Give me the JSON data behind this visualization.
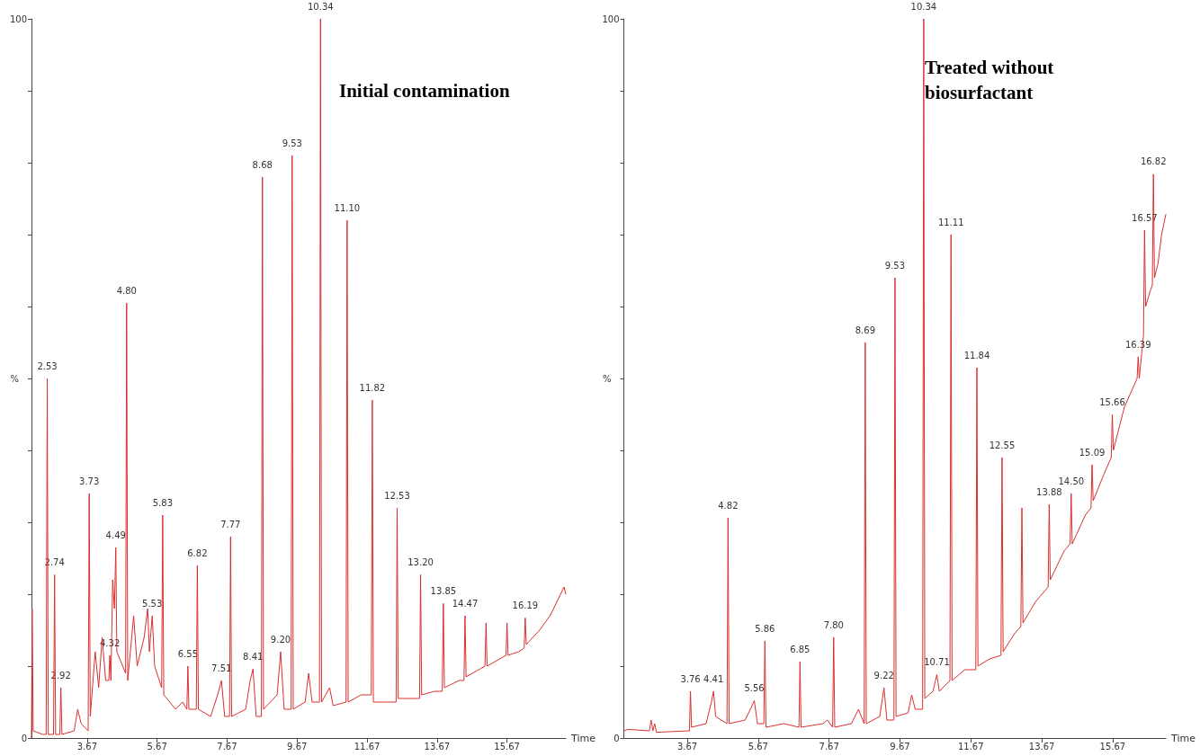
{
  "chart_data": [
    {
      "type": "line",
      "title": "Initial contamination",
      "xlabel": "Time",
      "ylabel": "%",
      "xlim": [
        2.08,
        17.35
      ],
      "xticks": [
        3.67,
        5.67,
        7.67,
        9.67,
        11.67,
        13.67,
        15.67
      ],
      "ylim": [
        0,
        100
      ],
      "yticks": [
        {
          "value": 0,
          "label": "0"
        },
        {
          "value": 10,
          "label": null
        },
        {
          "value": 20,
          "label": null
        },
        {
          "value": 30,
          "label": null
        },
        {
          "value": 40,
          "label": null
        },
        {
          "value": 50,
          "label": null
        },
        {
          "value": 60,
          "label": null
        },
        {
          "value": 70,
          "label": null
        },
        {
          "value": 80,
          "label": null
        },
        {
          "value": 90,
          "label": null
        },
        100
      ],
      "grid": false,
      "marker": "none",
      "line_style": "solid",
      "series": [
        {
          "color": "#d9302f",
          "x": [
            2.08,
            2.1,
            2.13,
            2.4,
            2.5,
            2.53,
            2.56,
            2.71,
            2.74,
            2.77,
            2.89,
            2.92,
            2.95,
            3.3,
            3.4,
            3.5,
            3.7,
            3.73,
            3.76,
            3.9,
            4.0,
            4.1,
            4.2,
            4.29,
            4.32,
            4.35,
            4.4,
            4.45,
            4.49,
            4.52,
            4.77,
            4.8,
            4.83,
            5.0,
            5.1,
            5.3,
            5.4,
            5.45,
            5.53,
            5.6,
            5.8,
            5.83,
            5.86,
            6.2,
            6.4,
            6.52,
            6.55,
            6.58,
            6.79,
            6.82,
            6.85,
            7.2,
            7.4,
            7.51,
            7.6,
            7.74,
            7.77,
            7.8,
            8.2,
            8.33,
            8.41,
            8.5,
            8.65,
            8.68,
            8.71,
            9.1,
            9.2,
            9.3,
            9.5,
            9.53,
            9.56,
            9.9,
            10.0,
            10.1,
            10.31,
            10.34,
            10.37,
            10.6,
            10.7,
            11.07,
            11.1,
            11.13,
            11.5,
            11.79,
            11.82,
            11.85,
            12.2,
            12.5,
            12.53,
            12.56,
            13.17,
            13.2,
            13.23,
            13.6,
            13.82,
            13.85,
            13.88,
            14.3,
            14.44,
            14.47,
            14.5,
            15.04,
            15.07,
            15.1,
            15.64,
            15.67,
            15.7,
            16.0,
            16.16,
            16.19,
            16.22,
            16.6,
            16.9,
            17.1,
            17.3,
            17.35
          ],
          "values": [
            0,
            18,
            1,
            0.5,
            0.5,
            50,
            0.5,
            0.5,
            22.7,
            0.5,
            0.5,
            7,
            0.5,
            1,
            4,
            2,
            1,
            34,
            3,
            12,
            7,
            14,
            8,
            8,
            11.5,
            8,
            22,
            18,
            26.5,
            12,
            9,
            60.5,
            8,
            17,
            10,
            14,
            18,
            12,
            17,
            10,
            7,
            31,
            6,
            4,
            5,
            4,
            10,
            4,
            4,
            24,
            4,
            3,
            6,
            8,
            3,
            3,
            28,
            3,
            4,
            8,
            9.6,
            3,
            3,
            78,
            4,
            6,
            12,
            4,
            4,
            81,
            4,
            5,
            9,
            5,
            5,
            100,
            5,
            7,
            4.5,
            5,
            72,
            5,
            6,
            6,
            47,
            5,
            5,
            5,
            32,
            5.5,
            5.5,
            22.7,
            6,
            6.5,
            6.5,
            18.7,
            7,
            8,
            8,
            17,
            8.5,
            10,
            16,
            10,
            11.5,
            16,
            11.5,
            12,
            12.5,
            16.7,
            13,
            15,
            17,
            19,
            21,
            20
          ]
        }
      ],
      "annotations": [
        {
          "text": "2.53",
          "x": 2.53,
          "y": 50
        },
        {
          "text": "2.74",
          "x": 2.74,
          "y": 22.7
        },
        {
          "text": "2.92",
          "x": 2.92,
          "y": 7
        },
        {
          "text": "3.73",
          "x": 3.73,
          "y": 34
        },
        {
          "text": "4.32",
          "x": 4.32,
          "y": 11.5
        },
        {
          "text": "4.49",
          "x": 4.49,
          "y": 26.5
        },
        {
          "text": "4.80",
          "x": 4.8,
          "y": 60.5
        },
        {
          "text": "5.53",
          "x": 5.53,
          "y": 17
        },
        {
          "text": "5.83",
          "x": 5.83,
          "y": 31
        },
        {
          "text": "6.55",
          "x": 6.55,
          "y": 10
        },
        {
          "text": "6.82",
          "x": 6.82,
          "y": 24
        },
        {
          "text": "7.51",
          "x": 7.51,
          "y": 8
        },
        {
          "text": "7.77",
          "x": 7.77,
          "y": 28
        },
        {
          "text": "8.41",
          "x": 8.41,
          "y": 9.6
        },
        {
          "text": "8.68",
          "x": 8.68,
          "y": 78
        },
        {
          "text": "9.20",
          "x": 9.2,
          "y": 12
        },
        {
          "text": "9.53",
          "x": 9.53,
          "y": 81
        },
        {
          "text": "10.34",
          "x": 10.34,
          "y": 100
        },
        {
          "text": "11.10",
          "x": 11.1,
          "y": 72
        },
        {
          "text": "11.82",
          "x": 11.82,
          "y": 47
        },
        {
          "text": "12.53",
          "x": 12.53,
          "y": 32
        },
        {
          "text": "13.20",
          "x": 13.2,
          "y": 22.7
        },
        {
          "text": "13.85",
          "x": 13.85,
          "y": 18.7
        },
        {
          "text": "14.47",
          "x": 14.47,
          "y": 17
        },
        {
          "text": "16.19",
          "x": 16.19,
          "y": 16.7
        }
      ]
    },
    {
      "type": "line",
      "title": "Treated without biosurfactant",
      "xlabel": "Time",
      "ylabel": "%",
      "xlim": [
        1.88,
        17.17
      ],
      "xticks": [
        3.67,
        5.67,
        7.67,
        9.67,
        11.67,
        13.67,
        15.67
      ],
      "ylim": [
        0,
        100
      ],
      "yticks": [
        {
          "value": 0,
          "label": "0"
        },
        {
          "value": 10,
          "label": null
        },
        {
          "value": 20,
          "label": null
        },
        {
          "value": 30,
          "label": null
        },
        {
          "value": 40,
          "label": null
        },
        {
          "value": 50,
          "label": null
        },
        {
          "value": 60,
          "label": null
        },
        {
          "value": 70,
          "label": null
        },
        {
          "value": 80,
          "label": null
        },
        {
          "value": 90,
          "label": null
        },
        100
      ],
      "grid": false,
      "marker": "none",
      "line_style": "solid",
      "series": [
        {
          "color": "#d9302f",
          "x": [
            1.88,
            2.0,
            2.6,
            2.65,
            2.7,
            2.75,
            2.8,
            3.73,
            3.76,
            3.79,
            4.2,
            4.35,
            4.41,
            4.47,
            4.79,
            4.82,
            4.85,
            5.3,
            5.45,
            5.56,
            5.65,
            5.83,
            5.86,
            5.89,
            6.4,
            6.82,
            6.85,
            6.88,
            7.5,
            7.62,
            7.77,
            7.8,
            7.83,
            8.3,
            8.5,
            8.66,
            8.69,
            8.72,
            9.1,
            9.22,
            9.3,
            9.5,
            9.53,
            9.56,
            9.9,
            10.0,
            10.1,
            10.31,
            10.34,
            10.37,
            10.6,
            10.71,
            10.78,
            11.08,
            11.11,
            11.14,
            11.5,
            11.81,
            11.84,
            11.87,
            12.2,
            12.52,
            12.55,
            12.58,
            12.9,
            13.08,
            13.11,
            13.14,
            13.5,
            13.85,
            13.88,
            13.91,
            14.3,
            14.47,
            14.5,
            14.53,
            14.9,
            15.06,
            15.09,
            15.12,
            15.45,
            15.63,
            15.66,
            15.69,
            16.0,
            16.36,
            16.39,
            16.42,
            16.52,
            16.54,
            16.57,
            16.6,
            16.72,
            16.79,
            16.82,
            16.85,
            16.95,
            17.05,
            17.17
          ],
          "values": [
            1,
            1.2,
            1,
            2.5,
            1,
            2,
            0.8,
            1,
            6.5,
            1.5,
            2,
            5,
            6.5,
            3,
            2,
            30.6,
            2,
            2.5,
            4,
            5.2,
            2,
            2,
            13.5,
            1.5,
            2,
            1.5,
            10.6,
            1.5,
            2,
            2.5,
            1.5,
            14,
            1.5,
            2,
            4,
            2,
            55,
            2,
            3,
            7,
            2.5,
            2.5,
            64,
            3,
            3.5,
            6,
            4,
            4,
            100,
            5.5,
            6.5,
            8.8,
            6.5,
            8,
            70,
            8,
            9.5,
            9.5,
            51.5,
            10,
            11,
            11.5,
            39,
            12,
            14.5,
            15.5,
            32,
            16,
            19,
            21,
            32.5,
            22,
            26,
            27,
            34,
            27,
            31,
            32,
            38,
            33,
            37,
            39,
            45,
            40,
            46,
            50,
            53,
            50,
            55,
            56,
            70.6,
            60,
            62,
            63,
            78.4,
            64,
            66,
            70,
            72.8
          ]
        }
      ],
      "annotations": [
        {
          "text": "3.76",
          "x": 3.76,
          "y": 6.5
        },
        {
          "text": "4.41",
          "x": 4.41,
          "y": 6.5
        },
        {
          "text": "4.82",
          "x": 4.82,
          "y": 30.6
        },
        {
          "text": "5.56",
          "x": 5.56,
          "y": 5.2
        },
        {
          "text": "5.86",
          "x": 5.86,
          "y": 13.5
        },
        {
          "text": "6.85",
          "x": 6.85,
          "y": 10.6
        },
        {
          "text": "7.80",
          "x": 7.8,
          "y": 14
        },
        {
          "text": "8.69",
          "x": 8.69,
          "y": 55
        },
        {
          "text": "9.22",
          "x": 9.22,
          "y": 7
        },
        {
          "text": "9.53",
          "x": 9.53,
          "y": 64
        },
        {
          "text": "10.34",
          "x": 10.34,
          "y": 100
        },
        {
          "text": "10.71",
          "x": 10.71,
          "y": 8.8
        },
        {
          "text": "11.11",
          "x": 11.11,
          "y": 70
        },
        {
          "text": "11.84",
          "x": 11.84,
          "y": 51.5
        },
        {
          "text": "12.55",
          "x": 12.55,
          "y": 39
        },
        {
          "text": "13.88",
          "x": 13.88,
          "y": 32.5
        },
        {
          "text": "14.50",
          "x": 14.5,
          "y": 34
        },
        {
          "text": "15.09",
          "x": 15.09,
          "y": 38
        },
        {
          "text": "15.66",
          "x": 15.66,
          "y": 45
        },
        {
          "text": "16.39",
          "x": 16.39,
          "y": 53
        },
        {
          "text": "16.57",
          "x": 16.57,
          "y": 70.6
        },
        {
          "text": "16.82",
          "x": 16.82,
          "y": 78.4
        }
      ]
    }
  ]
}
